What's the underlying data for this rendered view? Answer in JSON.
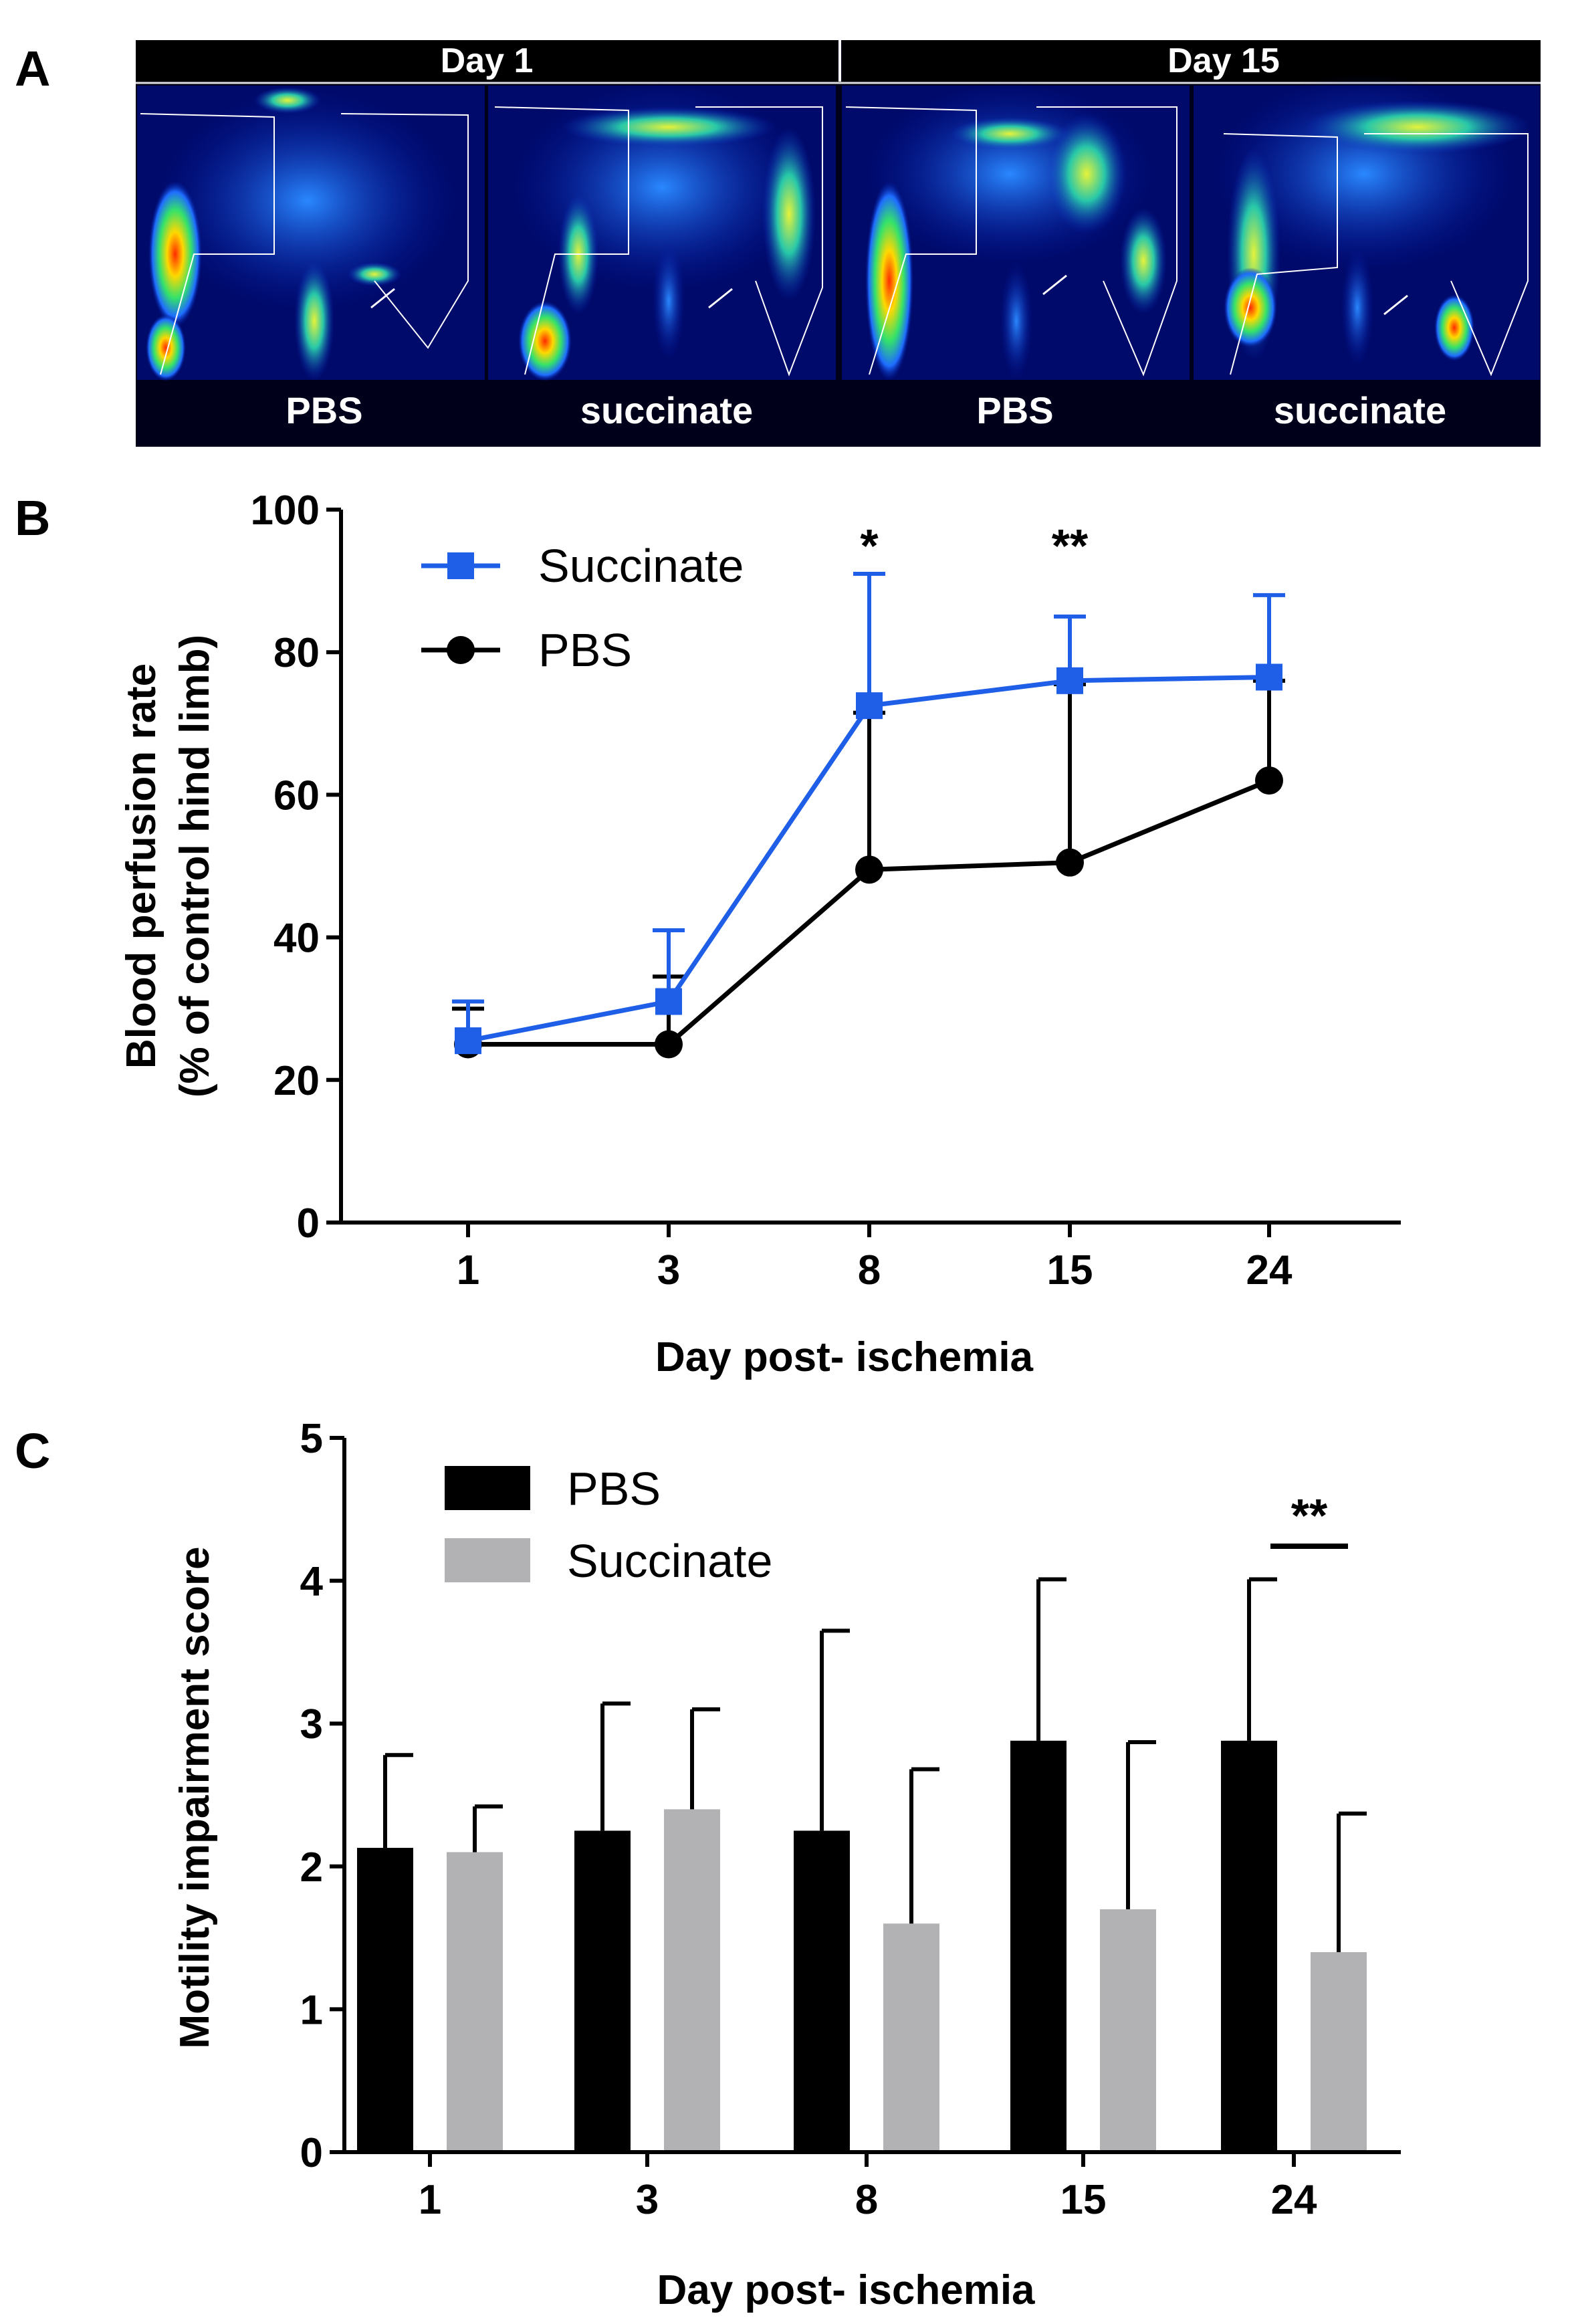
{
  "panel_labels": {
    "a": "A",
    "b": "B",
    "c": "C"
  },
  "panel_a": {
    "day_headers": [
      "Day 1",
      "Day 15"
    ],
    "conditions": [
      "PBS",
      "succinate",
      "PBS",
      "succinate"
    ],
    "image_description": "laser Doppler perfusion images of mouse hind limbs"
  },
  "chart_data": [
    {
      "type": "line",
      "panel": "B",
      "categories": [
        "1",
        "3",
        "8",
        "15",
        "24"
      ],
      "series": [
        {
          "name": "Succinate",
          "color": "#1f5fe8",
          "marker": "square",
          "values": [
            25.5,
            31,
            72.5,
            76,
            76.5
          ],
          "errors": [
            5.5,
            10,
            18.5,
            9,
            11.5
          ]
        },
        {
          "name": "PBS",
          "color": "#000000",
          "marker": "circle",
          "values": [
            25,
            25,
            49.5,
            50.5,
            62
          ],
          "errors": [
            5,
            9.5,
            22,
            25,
            14
          ]
        }
      ],
      "annotations": [
        {
          "category": "8",
          "text": "*"
        },
        {
          "category": "15",
          "text": "**"
        }
      ],
      "xlabel": "Day post- ischemia",
      "ylabel_line1": "Blood perfusion rate",
      "ylabel_line2": "(% of control hind limb)",
      "ylim": [
        0,
        100
      ],
      "yticks": [
        "0",
        "20",
        "40",
        "60",
        "80",
        "100"
      ]
    },
    {
      "type": "bar",
      "panel": "C",
      "categories": [
        "1",
        "3",
        "8",
        "15",
        "24"
      ],
      "series": [
        {
          "name": "PBS",
          "color": "#000000",
          "values": [
            2.13,
            2.25,
            2.25,
            2.88,
            2.88
          ],
          "errors": [
            0.65,
            0.89,
            1.4,
            1.13,
            1.13
          ]
        },
        {
          "name": "Succinate",
          "color": "#b2b2b4",
          "values": [
            2.1,
            2.4,
            1.6,
            1.7,
            1.4
          ],
          "errors": [
            0.32,
            0.7,
            1.08,
            1.17,
            0.97
          ]
        }
      ],
      "annotations": [
        {
          "category": "24",
          "text": "**"
        }
      ],
      "xlabel": "Day post- ischemia",
      "ylabel": "Motility impairment score",
      "ylim": [
        0,
        5
      ],
      "yticks": [
        "0",
        "1",
        "2",
        "3",
        "4",
        "5"
      ]
    }
  ]
}
